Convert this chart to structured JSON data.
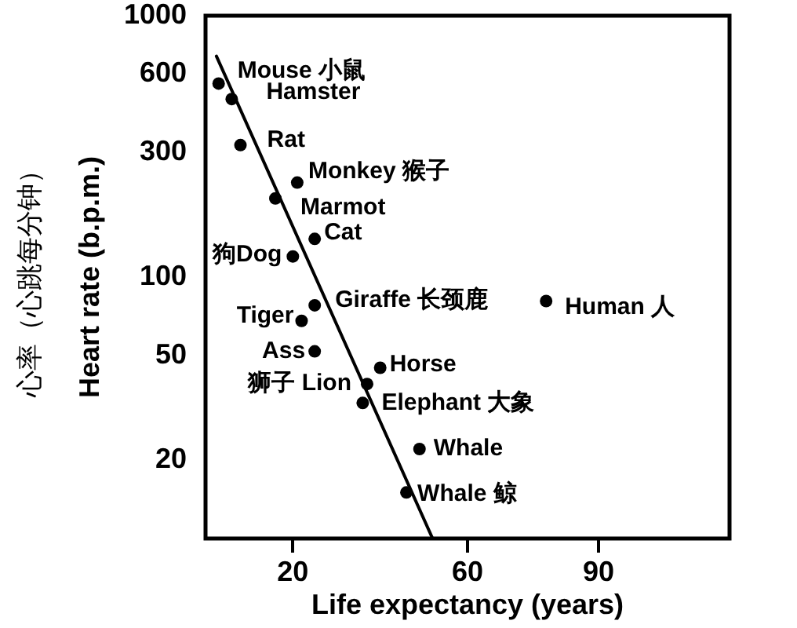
{
  "chart_data": {
    "type": "scatter",
    "xlabel": "Life expectancy (years)",
    "ylabel": "心率（心跳每分钟）\nHeart rate (b.p.m.)",
    "series": [
      {
        "color": "#000000",
        "x": [
          3,
          6,
          8,
          21,
          16,
          25,
          20,
          25,
          22,
          25,
          37,
          36,
          40,
          49,
          46,
          78
        ],
        "values": [
          550,
          480,
          320,
          230,
          200,
          140,
          120,
          78,
          68,
          52,
          39,
          33,
          45,
          22,
          15,
          81
        ]
      },
      {
        "type": "line",
        "color": "#000000",
        "marker": "none",
        "x": [
          2.5,
          52
        ],
        "values": [
          700,
          10
        ]
      }
    ],
    "annotations": [
      {
        "text": "Mouse 小鼠",
        "x": 3,
        "y": 550
      },
      {
        "text": "Hamster",
        "x": 6,
        "y": 480
      },
      {
        "text": "Rat",
        "x": 8,
        "y": 320
      },
      {
        "text": "Monkey 猴子",
        "x": 21,
        "y": 230
      },
      {
        "text": "Marmot",
        "x": 16,
        "y": 200
      },
      {
        "text": "Cat",
        "x": 25,
        "y": 140
      },
      {
        "text": "狗Dog",
        "x": 20,
        "y": 120
      },
      {
        "text": "Giraffe 长颈鹿",
        "x": 25,
        "y": 78
      },
      {
        "text": "Tiger",
        "x": 22,
        "y": 68
      },
      {
        "text": "Ass",
        "x": 25,
        "y": 52
      },
      {
        "text": "狮子 Lion",
        "x": 37,
        "y": 39
      },
      {
        "text": "Elephant 大象",
        "x": 36,
        "y": 33
      },
      {
        "text": "Horse",
        "x": 40,
        "y": 45
      },
      {
        "text": "Whale",
        "x": 49,
        "y": 22
      },
      {
        "text": "Whale 鲸",
        "x": 46,
        "y": 15
      },
      {
        "text": "Human 人",
        "x": 78,
        "y": 81
      }
    ],
    "xlim": [
      0,
      120
    ],
    "xticks": [
      20,
      60,
      90
    ],
    "ylim": [
      10,
      1000
    ],
    "yticks": [
      20,
      50,
      100,
      300,
      600,
      1000
    ],
    "log": "y",
    "marker": "circle"
  }
}
